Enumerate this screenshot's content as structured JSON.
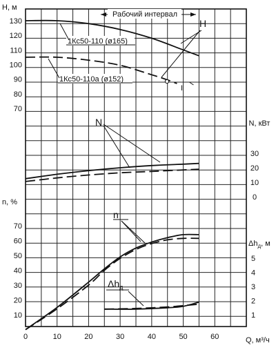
{
  "chart_data": {
    "type": "line",
    "x_axis": {
      "label": "Q, м³/ч",
      "ticks": [
        0,
        10,
        20,
        30,
        40,
        50,
        60
      ],
      "range": [
        0,
        70
      ],
      "grid_step": 5
    },
    "grid": true,
    "working_range": {
      "label": "Рабочий интервал",
      "x": [
        25,
        55
      ]
    },
    "panels": [
      {
        "id": "H",
        "axis_label": "H, м",
        "ticks": [
          70,
          80,
          90,
          100,
          110,
          120,
          130
        ],
        "range": [
          65,
          135
        ],
        "curve_label": "H",
        "series": [
          {
            "name": "1Кс50-110 (ø165)",
            "style": "solid",
            "x": [
              0,
              10,
              20,
              30,
              40,
              50,
              55
            ],
            "y": [
              130,
              130,
              128,
              124,
              118,
              110,
              106
            ]
          },
          {
            "name": "1Кс50-110а (ø152)",
            "style": "dashed",
            "x": [
              0,
              10,
              20,
              30,
              40,
              45,
              48
            ],
            "y": [
              105,
              105,
              103,
              99.5,
              93,
              89.5,
              87
            ]
          }
        ],
        "annotations": {
          "roman_one": "I"
        }
      },
      {
        "id": "N",
        "axis_label": "N, кВт",
        "ticks": [
          0,
          10,
          20,
          30
        ],
        "range": [
          -5,
          55
        ],
        "curve_label": "N",
        "series": [
          {
            "name": "N (ø165)",
            "style": "solid",
            "x": [
              0,
              10,
              20,
              30,
              40,
              50,
              55
            ],
            "y": [
              12.5,
              15.5,
              18,
              20,
              21.5,
              22.5,
              23
            ]
          },
          {
            "name": "N (ø152)",
            "style": "dashed",
            "x": [
              0,
              10,
              20,
              30,
              40,
              50,
              55
            ],
            "y": [
              10.5,
              13,
              15,
              16.5,
              17.5,
              18.5,
              19
            ]
          }
        ]
      },
      {
        "id": "n",
        "axis_label": "n, %",
        "ticks": [
          10,
          20,
          30,
          40,
          50,
          60,
          70
        ],
        "range": [
          0,
          80
        ],
        "curve_label": "n",
        "series": [
          {
            "name": "n (ø165)",
            "style": "solid",
            "x": [
              0,
              10,
              20,
              25,
              30,
              35,
              40,
              45,
              50,
              55
            ],
            "y": [
              0,
              15,
              32,
              41,
              49,
              55,
              59,
              62,
              64,
              64
            ]
          },
          {
            "name": "n (ø152)",
            "style": "dashed",
            "x": [
              0,
              10,
              20,
              25,
              30,
              35,
              40,
              45,
              50,
              55
            ],
            "y": [
              0,
              14,
              30,
              40,
              48,
              54,
              58,
              60.5,
              61.5,
              61.5
            ]
          }
        ]
      },
      {
        "id": "dh",
        "axis_label": "Δh",
        "axis_label_sub": "д",
        "axis_label_unit": ", м",
        "ticks": [
          1,
          2,
          3,
          4,
          5
        ],
        "range": [
          0,
          6
        ],
        "curve_label": "Δh",
        "curve_label_sub": "д",
        "series": [
          {
            "name": "Δhд (ø165)",
            "style": "solid",
            "x": [
              25,
              35,
              45,
              50,
              55
            ],
            "y": [
              1.4,
              1.4,
              1.5,
              1.6,
              1.9
            ]
          },
          {
            "name": "Δhд (ø152)",
            "style": "dashed",
            "x": [
              25,
              35,
              45,
              50,
              55
            ],
            "y": [
              1.4,
              1.45,
              1.55,
              1.65,
              1.75
            ]
          }
        ]
      }
    ]
  }
}
